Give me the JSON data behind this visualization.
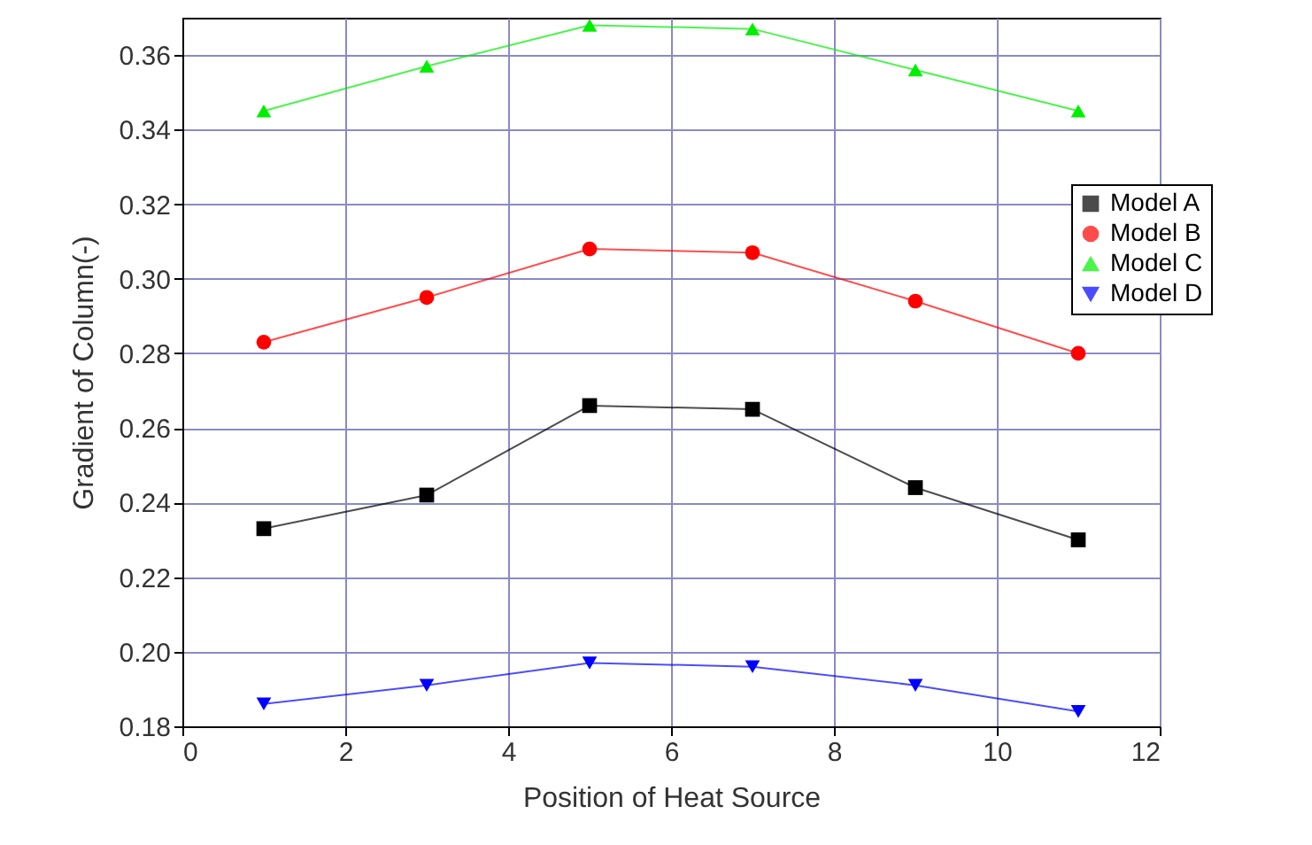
{
  "chart_data": {
    "type": "line",
    "xlabel": "Position of Heat Source",
    "ylabel": "Gradient of Column(-)",
    "x": [
      1,
      3,
      5,
      7,
      9,
      11
    ],
    "series": [
      {
        "name": "Model A",
        "color": "#000000",
        "marker": "square",
        "values": [
          0.233,
          0.242,
          0.266,
          0.265,
          0.244,
          0.23
        ]
      },
      {
        "name": "Model B",
        "color": "#ff0000",
        "marker": "circle",
        "values": [
          0.283,
          0.295,
          0.308,
          0.307,
          0.294,
          0.28
        ]
      },
      {
        "name": "Model C",
        "color": "#00ee00",
        "marker": "triangle",
        "values": [
          0.345,
          0.357,
          0.368,
          0.367,
          0.356,
          0.345
        ]
      },
      {
        "name": "Model D",
        "color": "#0000ff",
        "marker": "triangle-down",
        "values": [
          0.186,
          0.191,
          0.197,
          0.196,
          0.191,
          0.184
        ]
      }
    ],
    "xlim": [
      0,
      12
    ],
    "xticks": [
      0,
      2,
      4,
      6,
      8,
      10,
      12
    ],
    "ylim": [
      0.18,
      0.37
    ],
    "yticks": [
      0.18,
      {
        "value": 0.2,
        "label": "0.20"
      },
      0.22,
      0.24,
      0.26,
      0.28,
      {
        "value": 0.3,
        "label": "0.30"
      },
      0.32,
      0.34,
      0.36
    ],
    "grid": true,
    "legend": "right",
    "line_style": "solid"
  }
}
